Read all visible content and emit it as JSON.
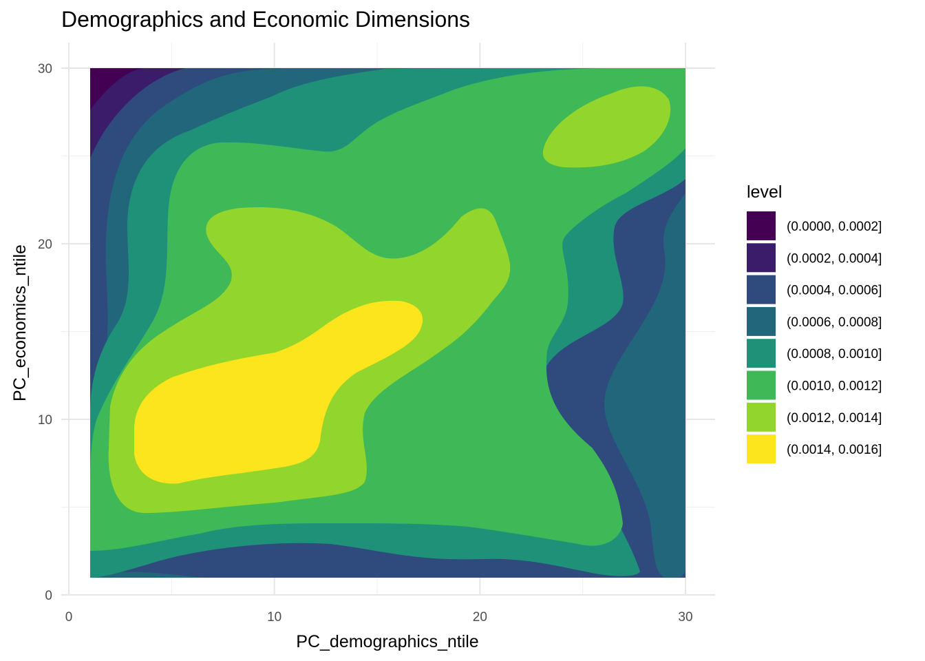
{
  "chart_data": {
    "type": "heatmap",
    "subtype": "filled-density-contour",
    "title": "Demographics and Economic Dimensions",
    "xlabel": "PC_demographics_ntile",
    "ylabel": "PC_economics_ntile",
    "xlim": [
      0,
      31.5
    ],
    "ylim": [
      0,
      30
    ],
    "x_ticks": [
      0,
      10,
      20,
      30
    ],
    "y_ticks": [
      0,
      10,
      20,
      30
    ],
    "grid": true,
    "legend": {
      "title": "level",
      "placement": "right",
      "entries": [
        {
          "label": "(0.0000, 0.0002]",
          "color": "#440154"
        },
        {
          "label": "(0.0002, 0.0004]",
          "color": "#3B1C6B"
        },
        {
          "label": "(0.0004, 0.0006]",
          "color": "#2F4A7C"
        },
        {
          "label": "(0.0006, 0.0008]",
          "color": "#21667A"
        },
        {
          "label": "(0.0008, 0.0010]",
          "color": "#1F9179"
        },
        {
          "label": "(0.0010, 0.0012]",
          "color": "#3FB857"
        },
        {
          "label": "(0.0012, 0.0014]",
          "color": "#92D52C"
        },
        {
          "label": "(0.0014, 0.0016]",
          "color": "#FDE51D"
        }
      ]
    },
    "density_extent": {
      "x": [
        1,
        30
      ],
      "y": [
        1,
        30
      ]
    },
    "density_peaks": [
      {
        "x": 8.8,
        "y": 10.2,
        "level_index": 7
      },
      {
        "x": 26.5,
        "y": 26.5,
        "level_index": 6
      },
      {
        "x": 23.7,
        "y": 4.2,
        "level_index": 5
      }
    ]
  }
}
